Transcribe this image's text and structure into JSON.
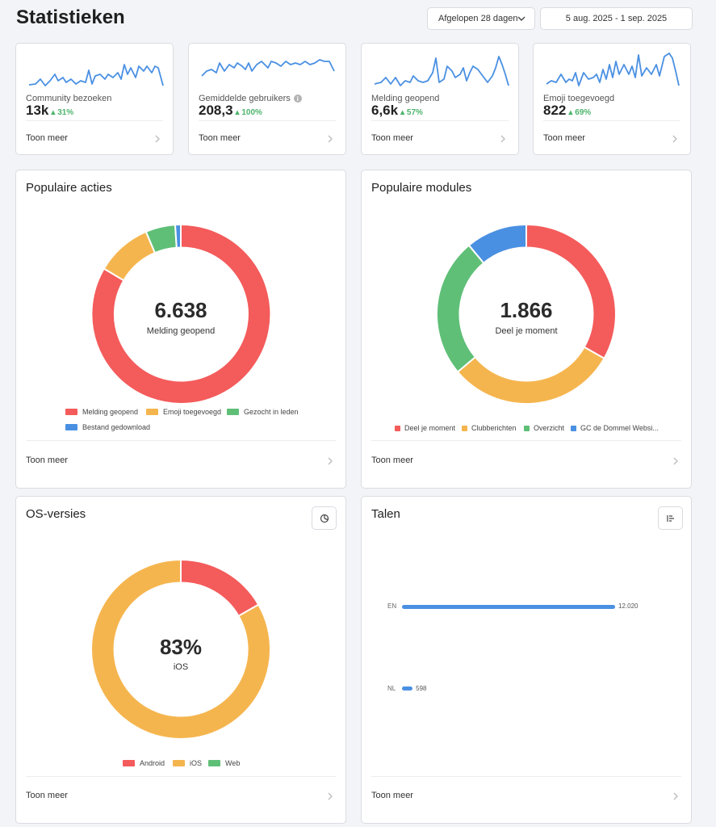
{
  "header": {
    "title": "Statistieken",
    "range_label": "Afgelopen 28 dagen",
    "date_range": "5 aug. 2025 - 1 sep. 2025"
  },
  "kpis": [
    {
      "label": "Community bezoeken",
      "value": "13k",
      "delta": "31%",
      "more": "Toon meer"
    },
    {
      "label": "Gemiddelde gebruikers",
      "value": "208,3",
      "delta": "100%",
      "more": "Toon meer"
    },
    {
      "label": "Melding geopend",
      "value": "6,6k",
      "delta": "57%",
      "more": "Toon meer"
    },
    {
      "label": "Emoji toegevoegd",
      "value": "822",
      "delta": "69%",
      "more": "Toon meer"
    }
  ],
  "acties": {
    "title": "Populaire acties",
    "center_value": "6.638",
    "center_label": "Melding geopend",
    "more": "Toon meer",
    "legend": [
      "Melding geopend",
      "Emoji toegevoegd",
      "Gezocht in leden",
      "Bestand gedownload"
    ]
  },
  "modules": {
    "title": "Populaire modules",
    "center_value": "1.866",
    "center_label": "Deel je moment",
    "more": "Toon meer",
    "legend": [
      "Deel je moment",
      "Clubberichten",
      "Overzicht",
      "GC de Dommel Websi..."
    ]
  },
  "os": {
    "title": "OS-versies",
    "center_value": "83%",
    "center_label": "iOS",
    "more": "Toon meer",
    "legend": [
      "Android",
      "iOS",
      "Web"
    ]
  },
  "talen": {
    "title": "Talen",
    "more": "Toon meer",
    "rows": [
      {
        "label": "EN",
        "value": "12.020"
      },
      {
        "label": "NL",
        "value": "598"
      }
    ]
  },
  "colors": {
    "red": "#f45b5b",
    "orange": "#f5b54e",
    "green": "#5fbf77",
    "blue": "#4a90e2",
    "spark": "#4a90e2",
    "delta": "#4db46c"
  },
  "chart_data": [
    {
      "type": "pie",
      "title": "Populaire acties",
      "categories": [
        "Melding geopend",
        "Emoji toegevoegd",
        "Gezocht in leden",
        "Bestand gedownload"
      ],
      "values": [
        80,
        12,
        7,
        1
      ]
    },
    {
      "type": "pie",
      "title": "Populaire modules",
      "categories": [
        "Deel je moment",
        "Clubberichten",
        "Overzicht",
        "GC de Dommel Websi..."
      ],
      "values": [
        30.5,
        30,
        28,
        11.5
      ]
    },
    {
      "type": "pie",
      "title": "OS-versies",
      "categories": [
        "Android",
        "iOS",
        "Web"
      ],
      "values": [
        17,
        83,
        0
      ]
    },
    {
      "type": "bar",
      "title": "Talen",
      "categories": [
        "EN",
        "NL"
      ],
      "values": [
        12020,
        598
      ]
    }
  ]
}
